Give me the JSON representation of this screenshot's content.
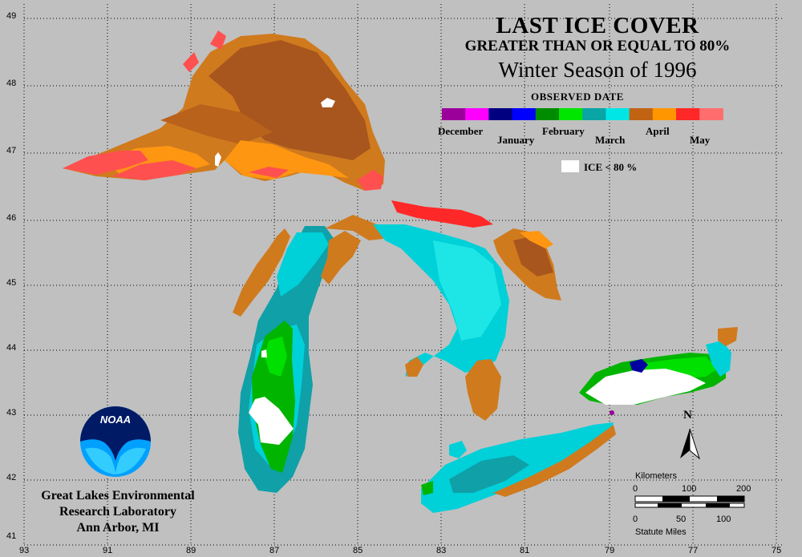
{
  "title": {
    "line1": "LAST ICE COVER",
    "line2": "GREATER THAN OR EQUAL TO 80%",
    "line3": "Winter Season of 1996",
    "legend_heading": "OBSERVED DATE"
  },
  "legend": {
    "months": [
      "December",
      "January",
      "February",
      "March",
      "April",
      "May"
    ],
    "colors": [
      "#9b009b",
      "#ff00ff",
      "#000080",
      "#0000ff",
      "#008c00",
      "#00e600",
      "#0aa5a5",
      "#00e6e6",
      "#c06414",
      "#ff9600",
      "#ff2828",
      "#ff6e6e"
    ],
    "ice_label": "ICE < 80 %"
  },
  "axes": {
    "latitudes": [
      "49",
      "48",
      "47",
      "46",
      "45",
      "44",
      "43",
      "42",
      "41"
    ],
    "longitudes": [
      "93",
      "91",
      "89",
      "87",
      "85",
      "83",
      "81",
      "79",
      "77",
      "75"
    ]
  },
  "organization": {
    "logo_text": "NOAA",
    "line1": "Great Lakes Environmental",
    "line2": "Research Laboratory",
    "line3": "Ann Arbor, MI"
  },
  "north_arrow": "N",
  "scale": {
    "km_label": "Kilometers",
    "km_ticks": [
      "0",
      "100",
      "200"
    ],
    "mi_ticks": [
      "0",
      "50",
      "100"
    ],
    "mi_label": "Statute Miles"
  }
}
